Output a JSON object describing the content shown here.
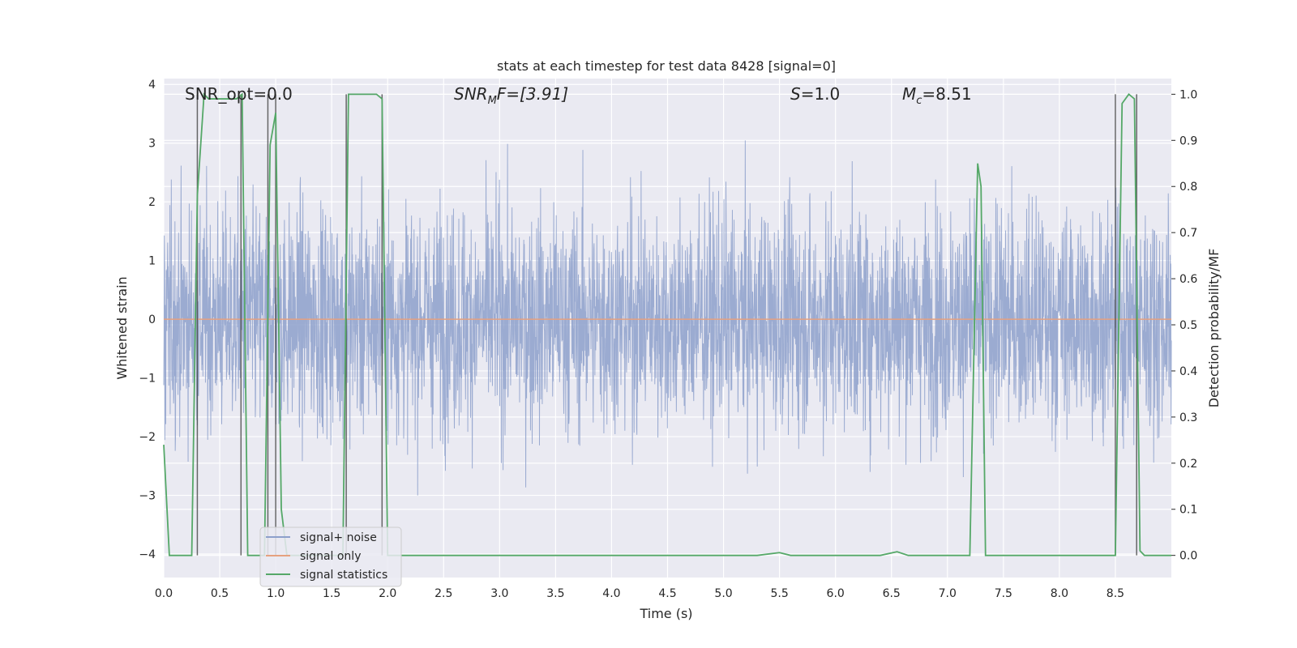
{
  "chart_data": {
    "type": "line",
    "title": "stats at each timestep for test data 8428 [signal=0]",
    "xlabel": "Time (s)",
    "ylabel_left": "Whitened strain",
    "ylabel_right": "Detection probability/MF",
    "xlim": [
      0.0,
      9.0
    ],
    "ylim_left": [
      -4.4,
      4.1
    ],
    "ylim_right": [
      -0.048,
      1.034
    ],
    "x_ticks": [
      "0.0",
      "0.5",
      "1.0",
      "1.5",
      "2.0",
      "2.5",
      "3.0",
      "3.5",
      "4.0",
      "4.5",
      "5.0",
      "5.5",
      "6.0",
      "6.5",
      "7.0",
      "7.5",
      "8.0",
      "8.5"
    ],
    "y_ticks_left": [
      "4",
      "3",
      "2",
      "1",
      "0",
      "−1",
      "−2",
      "−3",
      "−4"
    ],
    "y_ticks_right": [
      "1.0",
      "0.9",
      "0.8",
      "0.7",
      "0.6",
      "0.5",
      "0.4",
      "0.3",
      "0.2",
      "0.1",
      "0.0"
    ],
    "grid": true,
    "legend_position": "lower-left",
    "colors": {
      "noise": "#8da0cb",
      "signal_only": "#e5a17f",
      "statistics": "#55a868",
      "detection_lines": "#444444",
      "axes_bg": "#eaeaf2"
    },
    "annotations": {
      "snr_opt": "SNR_opt=0.0",
      "snr_mf_base": "SNR",
      "snr_mf_sub": "M",
      "snr_mf_rest": "F=[3.91]",
      "s_italic": "S",
      "s_rest": "=1.0",
      "mc_italic": "M",
      "mc_sub": "c",
      "mc_rest": "=8.51"
    },
    "series": [
      {
        "name": "signal+ noise",
        "axis": "left",
        "description_only": true,
        "samples": 3600,
        "noise_std": 0.95,
        "approx_range": [
          -3.6,
          3.6
        ]
      },
      {
        "name": "signal only",
        "axis": "left",
        "x": [
          0.0,
          9.0
        ],
        "y": [
          0.0,
          0.0
        ]
      },
      {
        "name": "signal statistics",
        "axis": "right",
        "x": [
          0.0,
          0.05,
          0.25,
          0.3,
          0.36,
          0.4,
          0.45,
          0.65,
          0.7,
          0.75,
          0.9,
          0.95,
          1.0,
          1.05,
          1.1,
          1.6,
          1.65,
          1.7,
          1.9,
          1.95,
          2.0,
          2.3,
          5.3,
          5.5,
          5.6,
          6.4,
          6.55,
          6.65,
          7.2,
          7.27,
          7.3,
          7.34,
          7.4,
          8.5,
          8.56,
          8.62,
          8.67,
          8.72,
          8.76,
          9.0
        ],
        "y": [
          0.24,
          0.0,
          0.0,
          0.78,
          1.0,
          0.99,
          0.99,
          0.99,
          1.0,
          0.0,
          0.0,
          0.89,
          0.96,
          0.1,
          0.0,
          0.0,
          1.0,
          1.0,
          1.0,
          0.99,
          0.0,
          0.0,
          0.0,
          0.006,
          0.0,
          0.0,
          0.008,
          0.0,
          0.0,
          0.85,
          0.8,
          0.0,
          0.0,
          0.0,
          0.98,
          1.0,
          0.99,
          0.01,
          0.0,
          0.0
        ]
      }
    ],
    "detection_lines_x": [
      0.3,
      0.69,
      0.93,
      1.0,
      1.63,
      1.95,
      8.5,
      8.69
    ]
  },
  "legend": {
    "items": [
      "signal+ noise",
      "signal only",
      "signal statistics"
    ]
  }
}
